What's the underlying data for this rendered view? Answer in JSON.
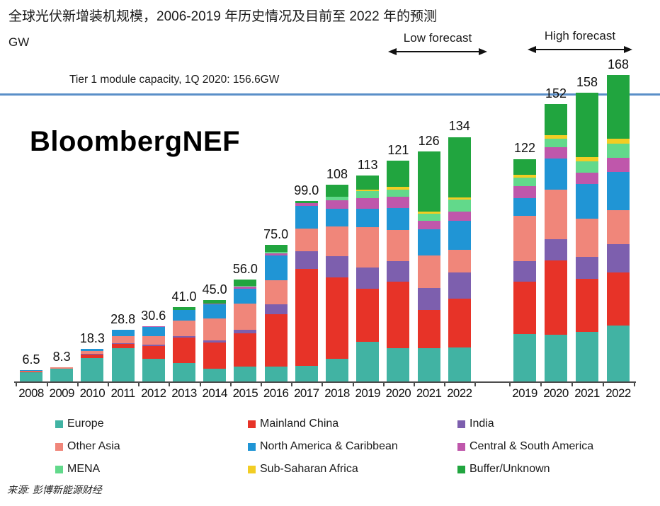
{
  "header": {
    "title": "全球光伏新增装机规模，2006-2019 年历史情况及目前至 2022 年的预测",
    "unit_label": "GW",
    "low_forecast_label": "Low forecast",
    "high_forecast_label": "High forecast",
    "watermark": "BloombergNEF"
  },
  "reference_line": {
    "label": "Tier 1 module capacity, 1Q 2020: 156.6GW",
    "value_gw": 156.6,
    "color": "#5a8fc8"
  },
  "source": "来源: 彭博新能源财经",
  "legend": [
    {
      "key": "europe",
      "label": "Europe"
    },
    {
      "key": "mainland_china",
      "label": "Mainland China"
    },
    {
      "key": "india",
      "label": "India"
    },
    {
      "key": "other_asia",
      "label": "Other Asia"
    },
    {
      "key": "north_america_caribbean",
      "label": "North America & Caribbean"
    },
    {
      "key": "central_south_america",
      "label": "Central & South America"
    },
    {
      "key": "mena",
      "label": "MENA"
    },
    {
      "key": "sub_saharan_africa",
      "label": "Sub-Saharan Africa"
    },
    {
      "key": "buffer_unknown",
      "label": "Buffer/Unknown"
    }
  ],
  "chart_data": {
    "type": "bar",
    "subtype": "stacked",
    "unit": "GW",
    "title": "全球光伏新增装机规模，2006-2019 年历史情况及目前至 2022 年的预测",
    "reference_line_gw": 156.6,
    "grid": false,
    "legend_position": "bottom",
    "stack_order": [
      "europe",
      "mainland_china",
      "india",
      "other_asia",
      "north_america_caribbean",
      "central_south_america",
      "mena",
      "sub_saharan_africa",
      "buffer_unknown"
    ],
    "colors": {
      "europe": "#41b3a3",
      "mainland_china": "#e73328",
      "india": "#7d5fae",
      "other_asia": "#f0867a",
      "north_america_caribbean": "#2095d5",
      "central_south_america": "#bf57ab",
      "mena": "#62d98b",
      "sub_saharan_africa": "#f2cd24",
      "buffer_unknown": "#21a53f"
    },
    "groups": [
      {
        "name": "history-and-low-forecast",
        "bars": [
          {
            "year": "2008",
            "total": 6.5,
            "label": "6.5",
            "segments": {
              "europe": 5.6,
              "mainland_china": 0.2,
              "india": 0,
              "other_asia": 0.4,
              "north_america_caribbean": 0.3,
              "central_south_america": 0,
              "mena": 0,
              "sub_saharan_africa": 0,
              "buffer_unknown": 0
            }
          },
          {
            "year": "2009",
            "total": 8.3,
            "label": "8.3",
            "segments": {
              "europe": 7.2,
              "mainland_china": 0.3,
              "india": 0,
              "other_asia": 0.5,
              "north_america_caribbean": 0.3,
              "central_south_america": 0,
              "mena": 0,
              "sub_saharan_africa": 0,
              "buffer_unknown": 0
            }
          },
          {
            "year": "2010",
            "total": 18.3,
            "label": "18.3",
            "segments": {
              "europe": 13.2,
              "mainland_china": 2.0,
              "india": 0.2,
              "other_asia": 1.6,
              "north_america_caribbean": 1.3,
              "central_south_america": 0,
              "mena": 0,
              "sub_saharan_africa": 0,
              "buffer_unknown": 0
            }
          },
          {
            "year": "2011",
            "total": 28.8,
            "label": "28.8",
            "segments": {
              "europe": 18.6,
              "mainland_china": 2.2,
              "india": 0.3,
              "other_asia": 4.2,
              "north_america_caribbean": 3.5,
              "central_south_america": 0,
              "mena": 0,
              "sub_saharan_africa": 0,
              "buffer_unknown": 0
            }
          },
          {
            "year": "2012",
            "total": 30.6,
            "label": "30.6",
            "segments": {
              "europe": 12.8,
              "mainland_china": 7.0,
              "india": 0.8,
              "other_asia": 4.6,
              "north_america_caribbean": 5.1,
              "central_south_america": 0.3,
              "mena": 0,
              "sub_saharan_africa": 0,
              "buffer_unknown": 0
            }
          },
          {
            "year": "2013",
            "total": 41.0,
            "label": "41.0",
            "segments": {
              "europe": 10.3,
              "mainland_china": 14.0,
              "india": 1.0,
              "other_asia": 8.5,
              "north_america_caribbean": 5.6,
              "central_south_america": 0,
              "mena": 0,
              "sub_saharan_africa": 0,
              "buffer_unknown": 1.6
            }
          },
          {
            "year": "2014",
            "total": 45.0,
            "label": "45.0",
            "segments": {
              "europe": 7.3,
              "mainland_china": 14.2,
              "india": 1.5,
              "other_asia": 12.0,
              "north_america_caribbean": 7.4,
              "central_south_america": 0.4,
              "mena": 0,
              "sub_saharan_africa": 0,
              "buffer_unknown": 2.2
            }
          },
          {
            "year": "2015",
            "total": 56.0,
            "label": "56.0",
            "segments": {
              "europe": 8.5,
              "mainland_china": 18.0,
              "india": 2.1,
              "other_asia": 14.5,
              "north_america_caribbean": 8.0,
              "central_south_america": 1.0,
              "mena": 0.4,
              "sub_saharan_africa": 0,
              "buffer_unknown": 3.5
            }
          },
          {
            "year": "2016",
            "total": 75.0,
            "label": "75.0",
            "segments": {
              "europe": 8.4,
              "mainland_china": 28.6,
              "india": 5.4,
              "other_asia": 13.1,
              "north_america_caribbean": 13.9,
              "central_south_america": 0.8,
              "mena": 0.9,
              "sub_saharan_africa": 0,
              "buffer_unknown": 3.9
            }
          },
          {
            "year": "2017",
            "total": 99.0,
            "label": "99.0",
            "segments": {
              "europe": 9.0,
              "mainland_china": 52.9,
              "india": 9.7,
              "other_asia": 12.4,
              "north_america_caribbean": 12.4,
              "central_south_america": 1.4,
              "mena": 0,
              "sub_saharan_africa": 0,
              "buffer_unknown": 1.2
            }
          },
          {
            "year": "2018",
            "total": 108,
            "label": "108",
            "segments": {
              "europe": 12.8,
              "mainland_china": 44.5,
              "india": 11.6,
              "other_asia": 16.2,
              "north_america_caribbean": 9.7,
              "central_south_america": 4.6,
              "mena": 1.9,
              "sub_saharan_africa": 0,
              "buffer_unknown": 6.7
            }
          },
          {
            "year": "2019",
            "total": 113,
            "label": "113",
            "segments": {
              "europe": 21.9,
              "mainland_china": 29.0,
              "india": 11.6,
              "other_asia": 22.2,
              "north_america_caribbean": 10.0,
              "central_south_america": 5.8,
              "mena": 4.0,
              "sub_saharan_africa": 0.8,
              "buffer_unknown": 7.7
            }
          },
          {
            "year": "2020",
            "total": 121,
            "label": "121",
            "segments": {
              "europe": 18.7,
              "mainland_china": 36.1,
              "india": 11.3,
              "other_asia": 17.0,
              "north_america_caribbean": 11.9,
              "central_south_america": 6.4,
              "mena": 3.9,
              "sub_saharan_africa": 1.3,
              "buffer_unknown": 14.4
            }
          },
          {
            "year": "2021",
            "total": 126,
            "label": "126",
            "segments": {
              "europe": 18.7,
              "mainland_china": 20.9,
              "india": 12.0,
              "other_asia": 17.7,
              "north_america_caribbean": 14.2,
              "central_south_america": 4.6,
              "mena": 3.9,
              "sub_saharan_africa": 1.2,
              "buffer_unknown": 32.8
            }
          },
          {
            "year": "2022",
            "total": 134,
            "label": "134",
            "segments": {
              "europe": 18.9,
              "mainland_china": 26.6,
              "india": 14.4,
              "other_asia": 12.6,
              "north_america_caribbean": 15.5,
              "central_south_america": 5.1,
              "mena": 6.5,
              "sub_saharan_africa": 1.5,
              "buffer_unknown": 32.9
            }
          }
        ]
      },
      {
        "name": "high-forecast",
        "bars": [
          {
            "year": "2019",
            "total": 122,
            "label": "122",
            "segments": {
              "europe": 26.4,
              "mainland_china": 28.4,
              "india": 11.2,
              "other_asia": 24.9,
              "north_america_caribbean": 9.7,
              "central_south_america": 6.7,
              "mena": 4.6,
              "sub_saharan_africa": 1.5,
              "buffer_unknown": 8.6
            }
          },
          {
            "year": "2020",
            "total": 152,
            "label": "152",
            "segments": {
              "europe": 25.8,
              "mainland_china": 40.6,
              "india": 11.6,
              "other_asia": 27.1,
              "north_america_caribbean": 17.1,
              "central_south_america": 6.1,
              "mena": 4.8,
              "sub_saharan_africa": 2.0,
              "buffer_unknown": 16.9
            }
          },
          {
            "year": "2021",
            "total": 158,
            "label": "158",
            "segments": {
              "europe": 27.3,
              "mainland_china": 29.0,
              "india": 12.2,
              "other_asia": 20.7,
              "north_america_caribbean": 19.1,
              "central_south_america": 6.2,
              "mena": 6.1,
              "sub_saharan_africa": 2.2,
              "buffer_unknown": 35.2
            }
          },
          {
            "year": "2022",
            "total": 168,
            "label": "168",
            "segments": {
              "europe": 30.9,
              "mainland_china": 29.0,
              "india": 15.5,
              "other_asia": 18.7,
              "north_america_caribbean": 20.9,
              "central_south_america": 7.7,
              "mena": 7.7,
              "sub_saharan_africa": 2.6,
              "buffer_unknown": 35.0
            }
          }
        ]
      }
    ]
  }
}
